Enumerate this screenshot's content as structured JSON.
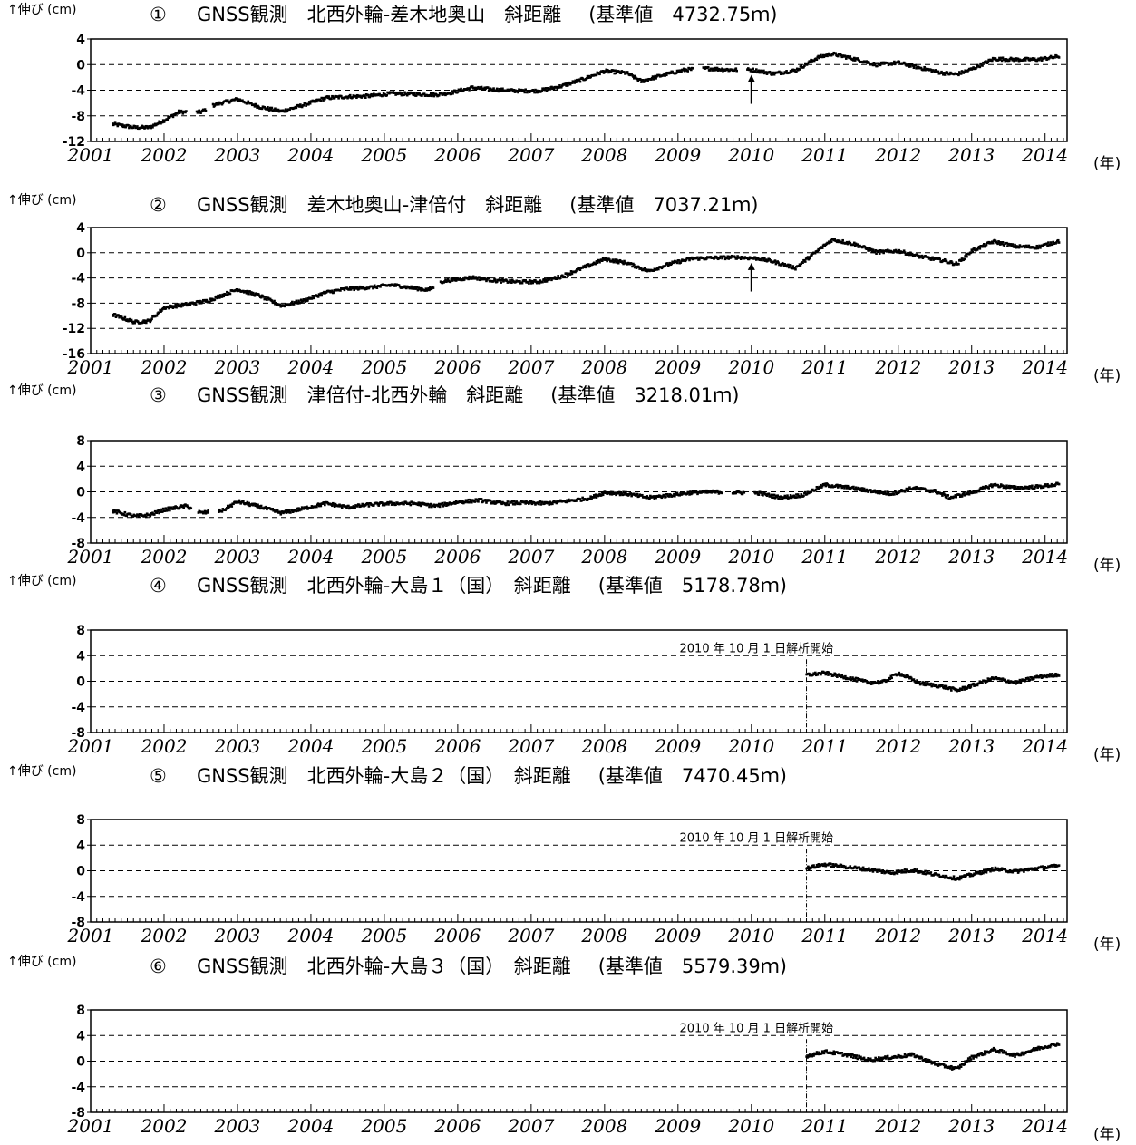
{
  "figure": {
    "x_unit_label": "(年)",
    "y_unit_label": "↑伸び (cm)",
    "year_labels": [
      "2001",
      "2002",
      "2003",
      "2004",
      "2005",
      "2006",
      "2007",
      "2008",
      "2009",
      "2010",
      "2011",
      "2012",
      "2013",
      "2014"
    ]
  },
  "chart_data": [
    {
      "type": "scatter",
      "number": "①",
      "title": "GNSS観測　北西外輪-差木地奥山　斜距離",
      "baseline": "(基準値　4732.75ｍ)",
      "ylabel": "↑伸び (cm)",
      "xlabel": "(年)",
      "ylim": [
        -12,
        4
      ],
      "yticks": [
        4,
        0,
        -4,
        -8,
        -12
      ],
      "xlim": [
        2001.0,
        2014.3
      ],
      "annotation": "",
      "arrow_x": 2010.0,
      "x": [
        2001.3,
        2001.6,
        2001.8,
        2002.0,
        2002.2,
        2002.5,
        2002.7,
        2003.0,
        2003.3,
        2003.6,
        2003.9,
        2004.2,
        2004.5,
        2004.8,
        2005.1,
        2005.4,
        2005.7,
        2005.9,
        2006.2,
        2006.5,
        2006.8,
        2007.1,
        2007.4,
        2007.7,
        2008.0,
        2008.3,
        2008.5,
        2008.8,
        2009.1,
        2009.4,
        2009.7,
        2010.0,
        2010.3,
        2010.6,
        2010.9,
        2011.1,
        2011.4,
        2011.7,
        2012.0,
        2012.3,
        2012.6,
        2012.8,
        2013.0,
        2013.3,
        2013.6,
        2013.9,
        2014.2
      ],
      "y": [
        -9.3,
        -9.8,
        -9.8,
        -8.7,
        -7.4,
        -7.4,
        -6.2,
        -5.4,
        -6.6,
        -7.3,
        -6.3,
        -5.2,
        -5.0,
        -4.9,
        -4.5,
        -4.6,
        -4.7,
        -4.4,
        -3.6,
        -3.9,
        -4.1,
        -4.1,
        -3.4,
        -2.3,
        -1.0,
        -1.3,
        -2.6,
        -1.6,
        -0.8,
        -0.6,
        -0.8,
        -0.8,
        -1.4,
        -0.9,
        1.1,
        1.7,
        0.9,
        0.0,
        0.3,
        -0.5,
        -1.3,
        -1.5,
        -0.7,
        0.9,
        0.8,
        0.8,
        1.3
      ],
      "gaps_after": [
        2002.3,
        2002.5,
        2009.3,
        2009.8
      ],
      "breaks_x": []
    },
    {
      "type": "scatter",
      "number": "②",
      "title": "GNSS観測　差木地奥山-津倍付　斜距離",
      "baseline": "(基準値　7037.21ｍ)",
      "ylabel": "↑伸び (cm)",
      "xlabel": "(年)",
      "ylim": [
        -16,
        4
      ],
      "yticks": [
        4,
        0,
        -4,
        -8,
        -12,
        -16
      ],
      "xlim": [
        2001.0,
        2014.3
      ],
      "annotation": "",
      "arrow_x": 2010.0,
      "x": [
        2001.3,
        2001.6,
        2001.8,
        2002.0,
        2002.3,
        2002.6,
        2003.0,
        2003.3,
        2003.6,
        2003.9,
        2004.2,
        2004.5,
        2004.8,
        2005.1,
        2005.4,
        2005.6,
        2005.8,
        2006.2,
        2006.5,
        2006.8,
        2007.1,
        2007.4,
        2007.7,
        2008.0,
        2008.3,
        2008.6,
        2008.9,
        2009.2,
        2009.5,
        2009.8,
        2010.1,
        2010.3,
        2010.6,
        2010.9,
        2011.1,
        2011.4,
        2011.7,
        2012.0,
        2012.3,
        2012.6,
        2012.8,
        2013.0,
        2013.3,
        2013.6,
        2013.9,
        2014.2
      ],
      "y": [
        -9.8,
        -11.0,
        -10.8,
        -8.7,
        -8.2,
        -7.6,
        -5.8,
        -6.8,
        -8.4,
        -7.6,
        -6.3,
        -5.7,
        -5.5,
        -5.1,
        -5.6,
        -5.9,
        -4.5,
        -3.9,
        -4.4,
        -4.6,
        -4.6,
        -3.8,
        -2.4,
        -1.0,
        -1.6,
        -2.9,
        -1.7,
        -0.9,
        -0.8,
        -0.7,
        -0.9,
        -1.4,
        -2.4,
        0.3,
        2.1,
        1.4,
        0.1,
        0.3,
        -0.6,
        -1.2,
        -1.8,
        0.3,
        1.8,
        1.0,
        0.9,
        1.9
      ],
      "gaps_after": [
        2005.6
      ],
      "breaks_x": []
    },
    {
      "type": "scatter",
      "number": "③",
      "title": "GNSS観測　津倍付-北西外輪　斜距離",
      "baseline": "(基準値　3218.01ｍ)",
      "ylabel": "↑伸び (cm)",
      "xlabel": "(年)",
      "ylim": [
        -8,
        8
      ],
      "yticks": [
        8,
        4,
        0,
        -4,
        -8
      ],
      "xlim": [
        2001.0,
        2014.3
      ],
      "annotation": "",
      "arrow_x": null,
      "x": [
        2001.3,
        2001.6,
        2001.8,
        2002.0,
        2002.3,
        2002.5,
        2002.8,
        2003.0,
        2003.3,
        2003.6,
        2003.9,
        2004.2,
        2004.5,
        2004.8,
        2005.1,
        2005.4,
        2005.7,
        2006.0,
        2006.3,
        2006.6,
        2006.9,
        2007.2,
        2007.5,
        2007.8,
        2008.0,
        2008.3,
        2008.6,
        2008.9,
        2009.2,
        2009.5,
        2009.8,
        2010.1,
        2010.4,
        2010.7,
        2011.0,
        2011.3,
        2011.6,
        2011.9,
        2012.2,
        2012.5,
        2012.7,
        2013.0,
        2013.3,
        2013.6,
        2013.9,
        2014.2
      ],
      "y": [
        -3.0,
        -3.8,
        -3.6,
        -2.8,
        -2.2,
        -3.3,
        -2.9,
        -1.5,
        -2.3,
        -3.3,
        -2.6,
        -1.8,
        -2.4,
        -2.0,
        -1.8,
        -1.8,
        -2.2,
        -1.6,
        -1.3,
        -1.8,
        -1.7,
        -1.8,
        -1.4,
        -1.0,
        -0.1,
        -0.3,
        -0.9,
        -0.5,
        -0.1,
        0.0,
        -0.1,
        -0.2,
        -0.9,
        -0.5,
        1.1,
        0.7,
        0.2,
        -0.3,
        0.6,
        0.1,
        -0.9,
        -0.1,
        1.1,
        0.6,
        0.8,
        1.2
      ],
      "gaps_after": [
        2002.3,
        2002.5,
        2009.5,
        2009.8
      ],
      "breaks_x": []
    },
    {
      "type": "scatter",
      "number": "④",
      "title": "GNSS観測　北西外輪-大島１（国）　斜距離",
      "baseline": "(基準値　5178.78ｍ)",
      "ylabel": "↑伸び (cm)",
      "xlabel": "(年)",
      "ylim": [
        -8,
        8
      ],
      "yticks": [
        8,
        4,
        0,
        -4,
        -8
      ],
      "xlim": [
        2001.0,
        2014.3
      ],
      "annotation": "2010 年 10 月 1 日解析開始",
      "arrow_x": null,
      "x": [
        2010.75,
        2011.0,
        2011.3,
        2011.6,
        2011.8,
        2012.0,
        2012.3,
        2012.6,
        2012.8,
        2013.0,
        2013.3,
        2013.6,
        2013.9,
        2014.2
      ],
      "y": [
        1.0,
        1.3,
        0.6,
        -0.2,
        -0.1,
        1.3,
        -0.3,
        -0.8,
        -1.4,
        -0.7,
        0.5,
        -0.2,
        0.7,
        1.1
      ],
      "gaps_after": [],
      "breaks_x": [
        2010.75
      ]
    },
    {
      "type": "scatter",
      "number": "⑤",
      "title": "GNSS観測　北西外輪-大島２（国）　斜距離",
      "baseline": "(基準値　7470.45ｍ)",
      "ylabel": "↑伸び (cm)",
      "xlabel": "(年)",
      "ylim": [
        -8,
        8
      ],
      "yticks": [
        8,
        4,
        0,
        -4,
        -8
      ],
      "xlim": [
        2001.0,
        2014.3
      ],
      "annotation": "2010 年 10 月 1 日解析開始",
      "arrow_x": null,
      "x": [
        2010.75,
        2011.0,
        2011.3,
        2011.6,
        2011.9,
        2012.2,
        2012.5,
        2012.8,
        2013.0,
        2013.3,
        2013.6,
        2013.9,
        2014.2
      ],
      "y": [
        0.4,
        1.0,
        0.6,
        0.2,
        -0.3,
        0.1,
        -0.6,
        -1.2,
        -0.6,
        0.3,
        -0.1,
        0.4,
        0.8
      ],
      "gaps_after": [],
      "breaks_x": [
        2010.75
      ]
    },
    {
      "type": "scatter",
      "number": "⑥",
      "title": "GNSS観測　北西外輪-大島３（国）　斜距離",
      "baseline": "(基準値　5579.39ｍ)",
      "ylabel": "↑伸び (cm)",
      "xlabel": "(年)",
      "ylim": [
        -8,
        8
      ],
      "yticks": [
        8,
        4,
        0,
        -4,
        -8
      ],
      "xlim": [
        2001.0,
        2014.3
      ],
      "annotation": "2010 年 10 月 1 日解析開始",
      "arrow_x": null,
      "x": [
        2010.75,
        2011.0,
        2011.3,
        2011.6,
        2011.9,
        2012.2,
        2012.5,
        2012.8,
        2013.0,
        2013.3,
        2013.6,
        2013.9,
        2014.2
      ],
      "y": [
        0.8,
        1.5,
        1.0,
        0.2,
        0.6,
        1.0,
        -0.4,
        -1.2,
        0.6,
        1.8,
        0.9,
        2.0,
        2.8
      ],
      "gaps_after": [],
      "breaks_x": [
        2010.75
      ]
    }
  ]
}
